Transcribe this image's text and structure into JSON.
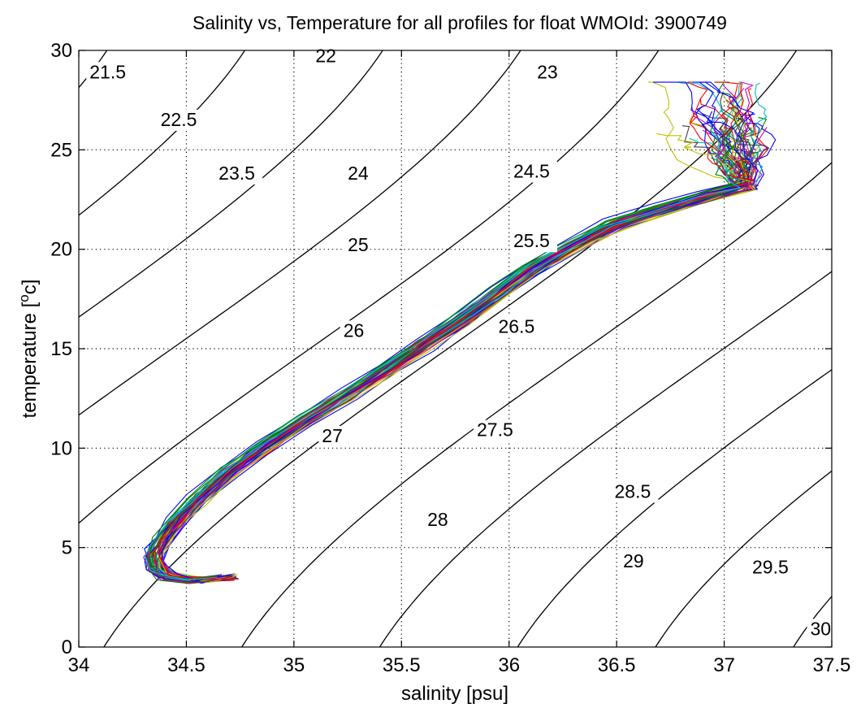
{
  "chart_data": {
    "type": "line",
    "title": "Salinity vs, Temperature for all profiles for float WMOId: 3900749",
    "xlabel": "salinity [psu]",
    "ylabel_parts": [
      "temperature [",
      "o",
      "c]"
    ],
    "xlim": [
      34,
      37.5
    ],
    "ylim": [
      0,
      30
    ],
    "xticks": [
      34,
      34.5,
      35,
      35.5,
      36,
      36.5,
      37,
      37.5
    ],
    "xtick_labels": [
      "34",
      "34.5",
      "35",
      "35.5",
      "36",
      "36.5",
      "37",
      "37.5"
    ],
    "yticks": [
      0,
      5,
      10,
      15,
      20,
      25,
      30
    ],
    "ytick_labels": [
      "0",
      "5",
      "10",
      "15",
      "20",
      "25",
      "30"
    ],
    "grid": true,
    "density_contours": [
      {
        "sigma": 21.5,
        "label": "21.5",
        "label_at": [
          34.05,
          28.6
        ]
      },
      {
        "sigma": 22,
        "label": "22",
        "label_at": [
          35.1,
          29.4
        ]
      },
      {
        "sigma": 22.5,
        "label": "22.5",
        "label_at": [
          34.38,
          26.2
        ]
      },
      {
        "sigma": 23,
        "label": "23",
        "label_at": [
          36.13,
          28.6
        ]
      },
      {
        "sigma": 23.5,
        "label": "23.5",
        "label_at": [
          34.65,
          23.5
        ]
      },
      {
        "sigma": 24,
        "label": "24",
        "label_at": [
          35.25,
          23.5
        ]
      },
      {
        "sigma": 24.5,
        "label": "24.5",
        "label_at": [
          36.02,
          23.6
        ]
      },
      {
        "sigma": 25,
        "label": "25",
        "label_at": [
          35.25,
          19.9
        ]
      },
      {
        "sigma": 25.5,
        "label": "25.5",
        "label_at": [
          36.02,
          20.1
        ]
      },
      {
        "sigma": 26,
        "label": "26",
        "label_at": [
          35.23,
          15.6
        ]
      },
      {
        "sigma": 26.5,
        "label": "26.5",
        "label_at": [
          35.95,
          15.8
        ]
      },
      {
        "sigma": 27,
        "label": "27",
        "label_at": [
          35.13,
          10.3
        ]
      },
      {
        "sigma": 27.5,
        "label": "27.5",
        "label_at": [
          35.85,
          10.6
        ]
      },
      {
        "sigma": 28,
        "label": "28",
        "label_at": [
          35.62,
          6.1
        ]
      },
      {
        "sigma": 28.5,
        "label": "28.5",
        "label_at": [
          36.49,
          7.5
        ]
      },
      {
        "sigma": 29,
        "label": "29",
        "label_at": [
          36.53,
          4.0
        ]
      },
      {
        "sigma": 29.5,
        "label": "29.5",
        "label_at": [
          37.13,
          3.7
        ]
      },
      {
        "sigma": 30,
        "label": "30",
        "label_at": [
          37.4,
          0.6
        ]
      }
    ],
    "profiles": {
      "count": 60,
      "colors": [
        "#0000ff",
        "#008000",
        "#ff0000",
        "#00bfbf",
        "#bf00bf",
        "#bfbf00",
        "#404040"
      ],
      "mean_path": [
        [
          34.7,
          3.5
        ],
        [
          34.55,
          3.35
        ],
        [
          34.42,
          3.55
        ],
        [
          34.36,
          4.0
        ],
        [
          34.35,
          4.6
        ],
        [
          34.38,
          5.3
        ],
        [
          34.45,
          6.3
        ],
        [
          34.55,
          7.4
        ],
        [
          34.7,
          8.8
        ],
        [
          34.85,
          10.0
        ],
        [
          35.05,
          11.4
        ],
        [
          35.25,
          12.7
        ],
        [
          35.42,
          13.9
        ],
        [
          35.6,
          15.2
        ],
        [
          35.78,
          16.5
        ],
        [
          35.95,
          17.8
        ],
        [
          36.1,
          19.0
        ],
        [
          36.28,
          20.1
        ],
        [
          36.48,
          21.2
        ],
        [
          36.7,
          22.0
        ],
        [
          36.9,
          22.6
        ],
        [
          37.1,
          23.2
        ]
      ],
      "surface_cloud": {
        "x_range": [
          36.25,
          37.25
        ],
        "t_range": [
          21.5,
          28.4
        ]
      }
    }
  }
}
